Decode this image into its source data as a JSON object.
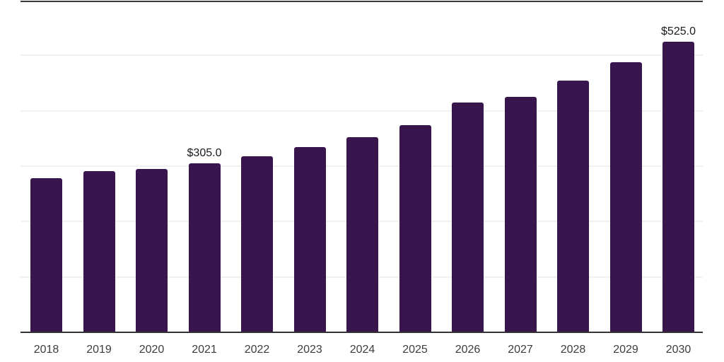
{
  "chart": {
    "background_color": "#ffffff",
    "bar_color": "#38164d",
    "axis_color": "#333333",
    "top_border_color": "#3a3a3a",
    "gridline_color": "#f0f0f0",
    "tick_label_color": "#3d3d3d",
    "annotation_color": "#1a1a1a"
  },
  "chart_data": {
    "type": "bar",
    "title": "",
    "xlabel": "",
    "ylabel": "",
    "categories": [
      "2018",
      "2019",
      "2020",
      "2021",
      "2022",
      "2023",
      "2024",
      "2025",
      "2026",
      "2027",
      "2028",
      "2029",
      "2030"
    ],
    "values": [
      278,
      291,
      295,
      305,
      318,
      334,
      352,
      374,
      415,
      425,
      455,
      488,
      525
    ],
    "annotations": [
      {
        "category": "2021",
        "index": 3,
        "text": "$305.0"
      },
      {
        "category": "2030",
        "index": 12,
        "text": "$525.0"
      }
    ],
    "ylim": [
      0,
      600
    ],
    "gridline_values": [
      100,
      200,
      300,
      400,
      500,
      600
    ],
    "y_axis_tick_labels_visible": false,
    "legend_position": "none",
    "grid": "horizontal"
  },
  "layout_values": {
    "note": "geometry derived from data below at render time"
  }
}
